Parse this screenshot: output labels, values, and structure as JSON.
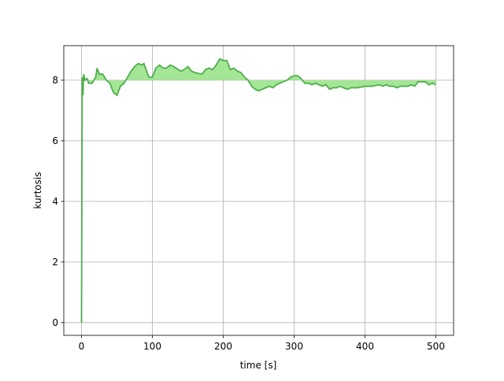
{
  "chart_data": {
    "type": "line",
    "xlabel": "time [s]",
    "ylabel": "kurtosis",
    "x": [
      0,
      1,
      2,
      3,
      5,
      8,
      10,
      15,
      20,
      22,
      25,
      30,
      35,
      40,
      45,
      50,
      55,
      60,
      65,
      70,
      75,
      80,
      85,
      88,
      95,
      100,
      105,
      110,
      115,
      120,
      125,
      130,
      140,
      145,
      150,
      155,
      160,
      170,
      175,
      180,
      185,
      190,
      195,
      200,
      205,
      210,
      215,
      220,
      225,
      230,
      235,
      240,
      245,
      250,
      255,
      260,
      265,
      270,
      275,
      280,
      285,
      290,
      295,
      300,
      305,
      310,
      315,
      320,
      325,
      330,
      335,
      340,
      345,
      350,
      355,
      360,
      365,
      370,
      375,
      380,
      390,
      400,
      410,
      420,
      425,
      430,
      435,
      440,
      445,
      450,
      455,
      460,
      465,
      470,
      475,
      480,
      485,
      490,
      495,
      500
    ],
    "series": [
      {
        "name": "kurtosis",
        "color": "#4daf4a",
        "fill_color": "#a4e596",
        "fill_to": 8,
        "values": [
          0,
          8.1,
          7.5,
          8.2,
          8.0,
          8.05,
          7.9,
          7.9,
          8.1,
          8.4,
          8.2,
          8.2,
          8.0,
          7.9,
          7.6,
          7.5,
          7.8,
          7.9,
          8.1,
          8.3,
          8.45,
          8.55,
          8.5,
          8.55,
          8.1,
          8.1,
          8.4,
          8.5,
          8.4,
          8.4,
          8.5,
          8.45,
          8.3,
          8.35,
          8.45,
          8.3,
          8.25,
          8.2,
          8.35,
          8.4,
          8.35,
          8.5,
          8.7,
          8.65,
          8.65,
          8.35,
          8.4,
          8.3,
          8.25,
          8.1,
          8.0,
          7.8,
          7.7,
          7.65,
          7.7,
          7.75,
          7.8,
          7.75,
          7.85,
          7.9,
          7.95,
          8.0,
          8.1,
          8.15,
          8.15,
          8.05,
          7.9,
          7.9,
          7.85,
          7.9,
          7.85,
          7.8,
          7.85,
          7.7,
          7.75,
          7.75,
          7.8,
          7.75,
          7.7,
          7.75,
          7.75,
          7.8,
          7.8,
          7.85,
          7.8,
          7.85,
          7.8,
          7.8,
          7.75,
          7.8,
          7.8,
          7.8,
          7.85,
          7.8,
          7.95,
          7.95,
          7.95,
          7.85,
          7.9,
          7.85
        ]
      }
    ],
    "xlim": [
      -25,
      525
    ],
    "ylim": [
      -0.42,
      9.14
    ],
    "xticks": [
      0,
      100,
      200,
      300,
      400,
      500
    ],
    "yticks": [
      0,
      2,
      4,
      6,
      8
    ],
    "grid": true
  }
}
